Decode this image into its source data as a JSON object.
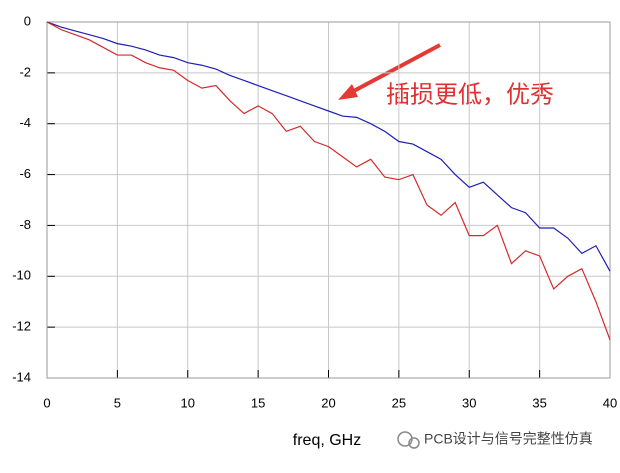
{
  "chart_data": {
    "type": "line",
    "x": [
      0,
      1,
      2,
      3,
      4,
      5,
      6,
      7,
      8,
      9,
      10,
      11,
      12,
      13,
      14,
      15,
      16,
      17,
      18,
      19,
      20,
      21,
      22,
      23,
      24,
      25,
      26,
      27,
      28,
      29,
      30,
      31,
      32,
      33,
      34,
      35,
      36,
      37,
      38,
      39,
      40
    ],
    "series": [
      {
        "color": "#1f1fb4",
        "values": [
          0,
          -0.2,
          -0.35,
          -0.5,
          -0.65,
          -0.85,
          -0.95,
          -1.1,
          -1.3,
          -1.4,
          -1.6,
          -1.7,
          -1.85,
          -2.1,
          -2.3,
          -2.5,
          -2.7,
          -2.9,
          -3.1,
          -3.3,
          -3.5,
          -3.7,
          -3.75,
          -4.0,
          -4.3,
          -4.7,
          -4.8,
          -5.1,
          -5.4,
          -6.0,
          -6.5,
          -6.3,
          -6.8,
          -7.3,
          -7.5,
          -8.1,
          -8.1,
          -8.5,
          -9.1,
          -8.8,
          -9.8
        ]
      },
      {
        "color": "#d42a2a",
        "values": [
          0,
          -0.3,
          -0.5,
          -0.7,
          -1.0,
          -1.3,
          -1.3,
          -1.6,
          -1.8,
          -1.9,
          -2.3,
          -2.6,
          -2.5,
          -3.1,
          -3.6,
          -3.3,
          -3.6,
          -4.3,
          -4.1,
          -4.7,
          -4.9,
          -5.3,
          -5.7,
          -5.4,
          -6.1,
          -6.2,
          -6.0,
          -7.2,
          -7.6,
          -7.1,
          -8.4,
          -8.4,
          -8.0,
          -9.5,
          -9.0,
          -9.2,
          -10.5,
          -10.0,
          -9.7,
          -11.0,
          -12.5
        ]
      }
    ],
    "xlim": [
      0,
      40
    ],
    "xticks": [
      0,
      5,
      10,
      15,
      20,
      25,
      30,
      35,
      40
    ],
    "ylim": [
      -14,
      0
    ],
    "yticks": [
      -14,
      -12,
      -10,
      -8,
      -6,
      -4,
      -2,
      0
    ],
    "grid": true,
    "xlabel": "freq, GHz",
    "annotation": "插损更低，优秀",
    "watermark": "PCB设计与信号完整性仿真"
  }
}
